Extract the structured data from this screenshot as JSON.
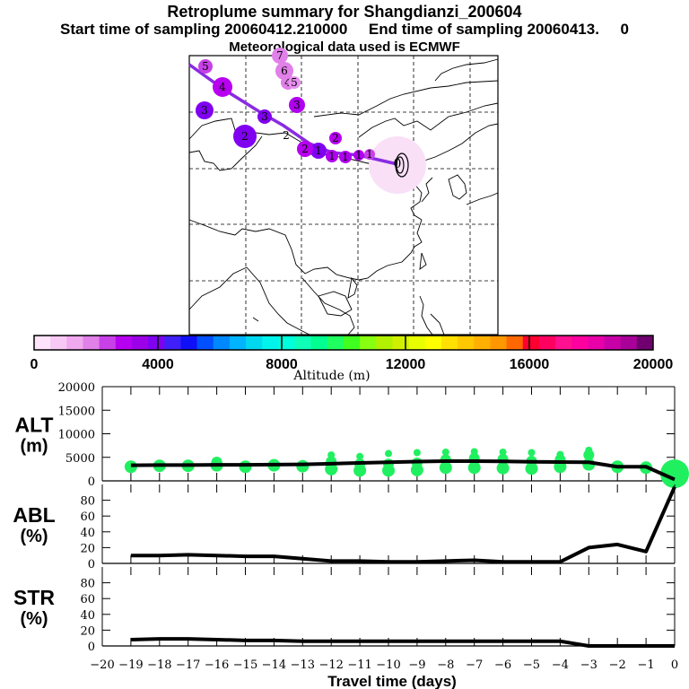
{
  "header": {
    "title": "Retroplume summary for Shangdianzi_200604",
    "subtitle": "Start time of sampling 20060412.210000     End time of sampling 20060413.     0",
    "met_line": "Meteorological data used is ECMWF"
  },
  "chart_data": [
    {
      "type": "map",
      "title": "Retroplume trajectory map",
      "description": "Backward plume centroid track from Shangdianzi (east Asia) toward the northwest, with cluster markers labelled by travel day, colored by altitude",
      "release_marker": "0",
      "track_labels": [
        "0",
        "1",
        "1",
        "1",
        "1",
        "1",
        "2",
        "2",
        "2",
        "2",
        "3",
        "3",
        "3",
        "4",
        "4",
        "5",
        "5",
        "6",
        "7"
      ],
      "colors": {
        "track": "#8a2be2",
        "release_circle": "#f9e0f7"
      }
    },
    {
      "type": "colorbar",
      "label": "Altitude (m)",
      "ticks": [
        "0",
        "4000",
        "8000",
        "12000",
        "16000",
        "20000"
      ],
      "range": [
        0,
        20000
      ],
      "colors": [
        "#fde4fb",
        "#f8c8f4",
        "#f0a8ee",
        "#e080e8",
        "#c840e8",
        "#b800f0",
        "#9c00e8",
        "#8000f0",
        "#4020f8",
        "#1010f8",
        "#0050ff",
        "#0088ff",
        "#00b4ff",
        "#00d8f0",
        "#00f4ec",
        "#00ffdc",
        "#10ffb8",
        "#00ff90",
        "#20ff60",
        "#40ff20",
        "#88ff10",
        "#b0f000",
        "#d0f000",
        "#e8ff00",
        "#ffff00",
        "#ffe000",
        "#ffc800",
        "#ffb000",
        "#ff9800",
        "#ff6800",
        "#ff0030",
        "#ff0060",
        "#ff1090",
        "#ff00a0",
        "#e800a8",
        "#c800a8",
        "#a80098",
        "#700070"
      ]
    },
    {
      "type": "line",
      "panel": "ALT",
      "ylabel": "ALT\n(m)",
      "ylabel_top": "ALT",
      "ylabel_bottom": "(m)",
      "ylim": [
        0,
        20000
      ],
      "yticks": [
        "0",
        "5000",
        "10000",
        "15000",
        "20000"
      ],
      "x": [
        -19,
        -18,
        -17,
        -16,
        -15,
        -14,
        -13,
        -12,
        -11,
        -10,
        -9,
        -8,
        -7,
        -6,
        -5,
        -4,
        -3,
        -2,
        -1,
        0
      ],
      "values": [
        3300,
        3350,
        3350,
        3400,
        3400,
        3450,
        3500,
        3650,
        3800,
        3950,
        4100,
        4200,
        4200,
        4150,
        4050,
        4000,
        3950,
        3000,
        3000,
        300
      ],
      "scatter_color": "#20f060",
      "scatter_clusters": [
        [
          3000
        ],
        [
          3200
        ],
        [
          3200
        ],
        [
          3300,
          4000
        ],
        [
          3000
        ],
        [
          3300
        ],
        [
          3100
        ],
        [
          2500,
          4100,
          5500
        ],
        [
          2200,
          3600,
          5200
        ],
        [
          2200,
          3600,
          5800
        ],
        [
          2300,
          3800,
          6000
        ],
        [
          2800,
          4500,
          6100
        ],
        [
          2800,
          4800,
          6200
        ],
        [
          2700,
          4600,
          6100
        ],
        [
          2600,
          4200,
          6000
        ],
        [
          3000,
          4500,
          5600
        ],
        [
          3500,
          5500,
          6500
        ],
        [
          3000
        ],
        [
          2800
        ],
        [
          1500
        ]
      ]
    },
    {
      "type": "line",
      "panel": "ABL",
      "ylabel_top": "ABL",
      "ylabel_bottom": "(%)",
      "ylim": [
        0,
        100
      ],
      "yticks": [
        "0",
        "20",
        "40",
        "60",
        "80"
      ],
      "x": [
        -19,
        -18,
        -17,
        -16,
        -15,
        -14,
        -13,
        -12,
        -11,
        -10,
        -9,
        -8,
        -7,
        -6,
        -5,
        -4,
        -3,
        -2,
        -1,
        0
      ],
      "values": [
        10,
        10,
        11,
        10,
        9,
        9,
        6,
        3,
        3,
        2,
        2,
        3,
        4,
        2,
        2,
        2,
        20,
        24,
        15,
        97
      ]
    },
    {
      "type": "line",
      "panel": "STR",
      "ylabel_top": "STR",
      "ylabel_bottom": "(%)",
      "ylim": [
        0,
        100
      ],
      "yticks": [
        "0",
        "20",
        "40",
        "60",
        "80"
      ],
      "x": [
        -19,
        -18,
        -17,
        -16,
        -15,
        -14,
        -13,
        -12,
        -11,
        -10,
        -9,
        -8,
        -7,
        -6,
        -5,
        -4,
        -3,
        -2,
        -1,
        0
      ],
      "values": [
        8,
        9,
        9,
        8,
        7,
        7,
        6,
        6,
        6,
        6,
        6,
        6,
        6,
        6,
        6,
        6,
        0,
        0,
        0,
        0
      ],
      "xlabel": "Travel time (days)",
      "xticks": [
        "-20",
        "-19",
        "-18",
        "-17",
        "-16",
        "-15",
        "-14",
        "-13",
        "-12",
        "-11",
        "-10",
        "-9",
        "-8",
        "-7",
        "-6",
        "-5",
        "-4",
        "-3",
        "-2",
        "-1",
        "0"
      ],
      "xlim": [
        -20,
        0
      ]
    }
  ]
}
